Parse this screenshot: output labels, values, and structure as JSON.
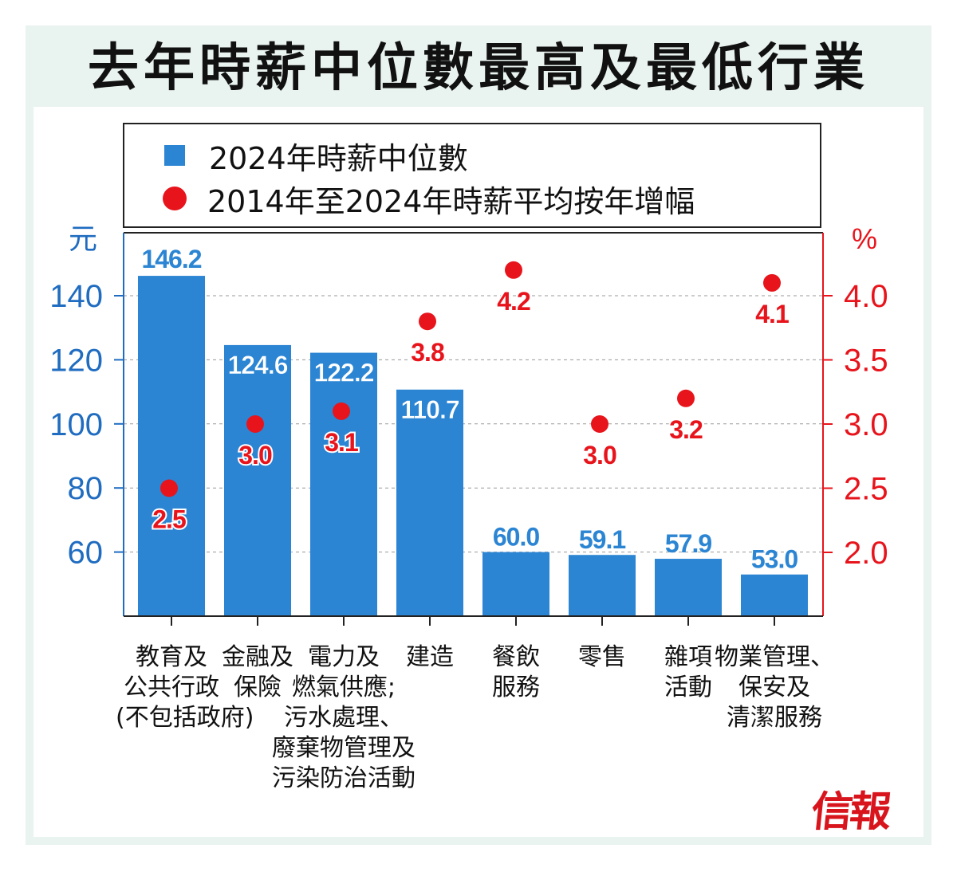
{
  "title": "去年時薪中位數最高及最低行業",
  "legend": {
    "bar_label": "2024年時薪中位數",
    "dot_label": "2014年至2024年時薪平均按年增幅"
  },
  "logo_text": "信報",
  "colors": {
    "bar": "#2b85d3",
    "dot": "#e8141c",
    "left_axis": "#1f6cc0",
    "right_axis": "#e8141c"
  },
  "chart_data": {
    "type": "bar",
    "title": "去年時薪中位數最高及最低行業",
    "categories": [
      [
        "教育及",
        "公共行政",
        "(不包括政府)"
      ],
      [
        "金融及",
        "保險"
      ],
      [
        "電力及",
        "燃氣供應;",
        "污水處理、",
        "廢棄物管理及",
        "污染防治活動"
      ],
      [
        "建造"
      ],
      [
        "餐飲",
        "服務"
      ],
      [
        "零售"
      ],
      [
        "雜項",
        "活動"
      ],
      [
        "物業管理、",
        "保安及",
        "清潔服務"
      ]
    ],
    "series": [
      {
        "name": "2024年時薪中位數",
        "type": "bar",
        "axis": "left",
        "values": [
          146.2,
          124.6,
          122.2,
          110.7,
          60.0,
          59.1,
          57.9,
          53.0
        ],
        "labels": [
          "146.2",
          "124.6",
          "122.2",
          "110.7",
          "60.0",
          "59.1",
          "57.9",
          "53.0"
        ]
      },
      {
        "name": "2014年至2024年時薪平均按年增幅",
        "type": "scatter",
        "axis": "right",
        "values": [
          2.5,
          3.0,
          3.1,
          3.8,
          4.2,
          3.0,
          3.2,
          4.1
        ],
        "labels": [
          "2.5",
          "3.0",
          "3.1",
          "3.8",
          "4.2",
          "3.0",
          "3.2",
          "4.1"
        ]
      }
    ],
    "left_axis": {
      "unit": "元",
      "ticks": [
        60,
        80,
        100,
        120,
        140
      ],
      "tick_labels": [
        "60",
        "80",
        "100",
        "120",
        "140"
      ],
      "range": [
        40,
        160
      ]
    },
    "right_axis": {
      "unit": "%",
      "ticks": [
        2.0,
        2.5,
        3.0,
        3.5,
        4.0
      ],
      "tick_labels": [
        "2.0",
        "2.5",
        "3.0",
        "3.5",
        "4.0"
      ],
      "range": [
        1.5,
        4.5
      ]
    },
    "grid": true
  }
}
